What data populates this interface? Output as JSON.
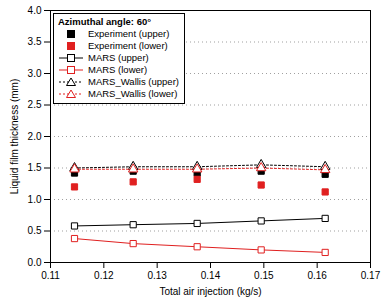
{
  "chart_data": {
    "type": "line",
    "title": "Azimuthal angle: 60°",
    "x_label": "Total air injection (kg/s)",
    "y_label": "Liquid film thickness (mm)",
    "x": [
      0.1145,
      0.1255,
      0.1375,
      0.1495,
      0.1615
    ],
    "series": [
      {
        "name": "Experiment (upper)",
        "type": "scatter",
        "color": "#000000",
        "marker": "square",
        "values": [
          1.42,
          1.45,
          1.42,
          1.45,
          1.4
        ]
      },
      {
        "name": "Experiment (lower)",
        "type": "scatter",
        "color": "#e02020",
        "marker": "square",
        "values": [
          1.2,
          1.28,
          1.32,
          1.23,
          1.12
        ]
      },
      {
        "name": "MARS (upper)",
        "type": "line",
        "color": "#000000",
        "marker": "open-square",
        "line_style": "solid",
        "values": [
          0.58,
          0.6,
          0.62,
          0.66,
          0.7
        ]
      },
      {
        "name": "MARS (lower)",
        "type": "line",
        "color": "#e02020",
        "marker": "open-square",
        "line_style": "solid",
        "values": [
          0.38,
          0.3,
          0.25,
          0.2,
          0.16
        ]
      },
      {
        "name": "MARS_Wallis (upper)",
        "type": "line",
        "color": "#000000",
        "marker": "open-triangle",
        "line_style": "dotted",
        "values": [
          1.5,
          1.52,
          1.52,
          1.55,
          1.52
        ]
      },
      {
        "name": "MARS_Wallis (lower)",
        "type": "line",
        "color": "#e02020",
        "marker": "open-triangle",
        "line_style": "dotted",
        "values": [
          1.48,
          1.48,
          1.48,
          1.5,
          1.47
        ]
      }
    ],
    "xlim": [
      0.11,
      0.17
    ],
    "xticks": [
      0.11,
      0.12,
      0.13,
      0.14,
      0.15,
      0.16,
      0.17
    ],
    "ylim": [
      0,
      4
    ],
    "yticks": [
      {
        "value": 0,
        "label": "0.0"
      },
      0.5,
      {
        "value": 1,
        "label": "1.0"
      },
      1.5,
      {
        "value": 2,
        "label": "2.0"
      },
      2.5,
      {
        "value": 3,
        "label": "3.0"
      },
      3.5,
      {
        "value": 4,
        "label": "4.0"
      }
    ],
    "grid": true,
    "legend": "upper left"
  }
}
